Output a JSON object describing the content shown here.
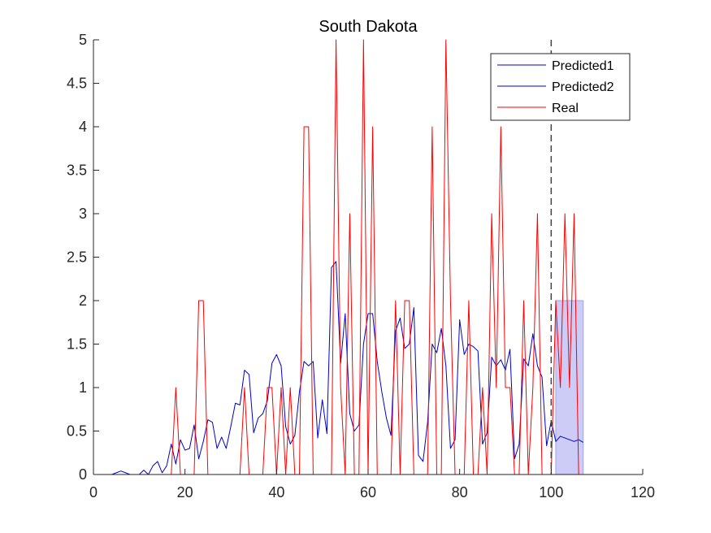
{
  "chart_data": {
    "type": "line",
    "title": "South Dakota",
    "xlabel": "",
    "ylabel": "",
    "xlim": [
      0,
      120
    ],
    "ylim": [
      0,
      5
    ],
    "xticks": [
      0,
      20,
      40,
      60,
      80,
      100,
      120
    ],
    "yticks": [
      0,
      0.5,
      1,
      1.5,
      2,
      2.5,
      3,
      3.5,
      4,
      4.5,
      5
    ],
    "xtick_labels": [
      "0",
      "20",
      "40",
      "60",
      "80",
      "100",
      "120"
    ],
    "ytick_labels": [
      "0",
      "0.5",
      "1",
      "1.5",
      "2",
      "2.5",
      "3",
      "3.5",
      "4",
      "4.5",
      "5"
    ],
    "grid": false,
    "legend_position": "top-right",
    "vline_x": 100,
    "shaded_band": {
      "x_start": 101,
      "x_end": 107,
      "y_low": 0,
      "y_high": 2,
      "color": "#c6c6f5"
    },
    "series": [
      {
        "name": "Predicted1",
        "color": "#0000cc",
        "x": [
          1,
          2,
          3,
          4,
          5,
          6,
          7,
          8,
          9,
          10,
          11,
          12,
          13,
          14,
          15,
          16,
          17,
          18,
          19,
          20,
          21,
          22,
          23,
          24,
          25,
          26,
          27,
          28,
          29,
          30,
          31,
          32,
          33,
          34,
          35,
          36,
          37,
          38,
          39,
          40,
          41,
          42,
          43,
          44,
          45,
          46,
          47,
          48,
          49,
          50,
          51,
          52,
          53,
          54,
          55,
          56,
          57,
          58,
          59,
          60,
          61,
          62,
          63,
          64,
          65,
          66,
          67,
          68,
          69,
          70,
          71,
          72,
          73,
          74,
          75,
          76,
          77,
          78,
          79,
          80,
          81,
          82,
          83,
          84,
          85,
          86,
          87,
          88,
          89,
          90,
          91,
          92,
          93,
          94,
          95,
          96,
          97,
          98,
          99,
          100
        ],
        "y": [
          0,
          0,
          0,
          0,
          0.02,
          0.04,
          0.02,
          0,
          0,
          0,
          0.05,
          0,
          0.1,
          0.15,
          0.02,
          0.1,
          0.35,
          0.12,
          0.4,
          0.28,
          0.3,
          0.57,
          0.18,
          0.38,
          0.63,
          0.6,
          0.3,
          0.43,
          0.3,
          0.55,
          0.82,
          0.8,
          1.2,
          1.15,
          0.48,
          0.65,
          0.7,
          0.85,
          1.28,
          1.38,
          1.25,
          0.55,
          0.35,
          0.45,
          0.95,
          1.3,
          1.25,
          1.3,
          0.42,
          0.86,
          0.47,
          2.38,
          2.45,
          1.28,
          1.85,
          0.7,
          0.5,
          0.57,
          1.5,
          1.85,
          1.85,
          1.3,
          0.95,
          0.65,
          0.45,
          1.65,
          1.8,
          1.45,
          1.5,
          1.92,
          0.22,
          0.15,
          0.6,
          1.5,
          1.4,
          1.68,
          1.25,
          0.3,
          0.4,
          1.78,
          1.38,
          1.5,
          1.47,
          1.42,
          0.35,
          0.48,
          1.35,
          1.25,
          1.32,
          1.2,
          1.44,
          0.18,
          0.35,
          1.33,
          1.25,
          1.62,
          1.25,
          1.12,
          0.33,
          0.62
        ]
      },
      {
        "name": "Predicted2",
        "color": "#0000cc",
        "x": [
          100,
          101,
          102,
          103,
          104,
          105,
          106,
          107
        ],
        "y": [
          0.62,
          0.38,
          0.44,
          0.42,
          0.4,
          0.38,
          0.4,
          0.37
        ]
      },
      {
        "name": "Real",
        "color": "#ff0000",
        "x": [
          1,
          2,
          3,
          4,
          5,
          6,
          7,
          8,
          9,
          10,
          11,
          12,
          13,
          14,
          15,
          16,
          17,
          18,
          19,
          20,
          21,
          22,
          23,
          24,
          25,
          26,
          27,
          28,
          29,
          30,
          31,
          32,
          33,
          34,
          35,
          36,
          37,
          38,
          39,
          40,
          41,
          42,
          43,
          44,
          45,
          46,
          47,
          48,
          49,
          50,
          51,
          52,
          53,
          54,
          55,
          56,
          57,
          58,
          59,
          60,
          61,
          62,
          63,
          64,
          65,
          66,
          67,
          68,
          69,
          70,
          71,
          72,
          73,
          74,
          75,
          76,
          77,
          78,
          79,
          80,
          81,
          82,
          83,
          84,
          85,
          86,
          87,
          88,
          89,
          90,
          91,
          92,
          93,
          94,
          95,
          96,
          97,
          98,
          99,
          100,
          101,
          102,
          103,
          104,
          105,
          106,
          107
        ],
        "y": [
          0,
          0,
          0,
          0,
          0,
          0,
          0,
          0,
          0,
          0,
          0,
          0,
          0,
          0,
          0,
          0,
          0,
          1,
          0,
          0,
          0,
          0,
          2,
          2,
          0,
          0,
          0,
          0,
          0,
          0,
          0,
          0,
          1,
          0,
          0,
          0,
          0,
          1,
          1,
          0,
          1,
          0,
          1,
          0,
          0,
          4,
          4,
          0,
          0,
          0,
          0,
          0,
          5,
          1,
          0,
          3,
          0,
          0,
          5,
          0,
          4,
          0,
          0,
          0,
          0,
          2,
          0,
          2,
          2,
          0,
          0,
          0,
          0,
          4,
          0,
          0,
          5,
          2,
          0,
          0,
          0,
          2,
          0,
          0,
          1,
          0,
          3,
          1,
          4,
          1,
          1,
          0,
          0,
          2,
          0,
          1,
          3,
          0,
          0,
          0,
          2,
          1,
          3,
          1,
          3,
          0,
          0
        ]
      }
    ]
  }
}
